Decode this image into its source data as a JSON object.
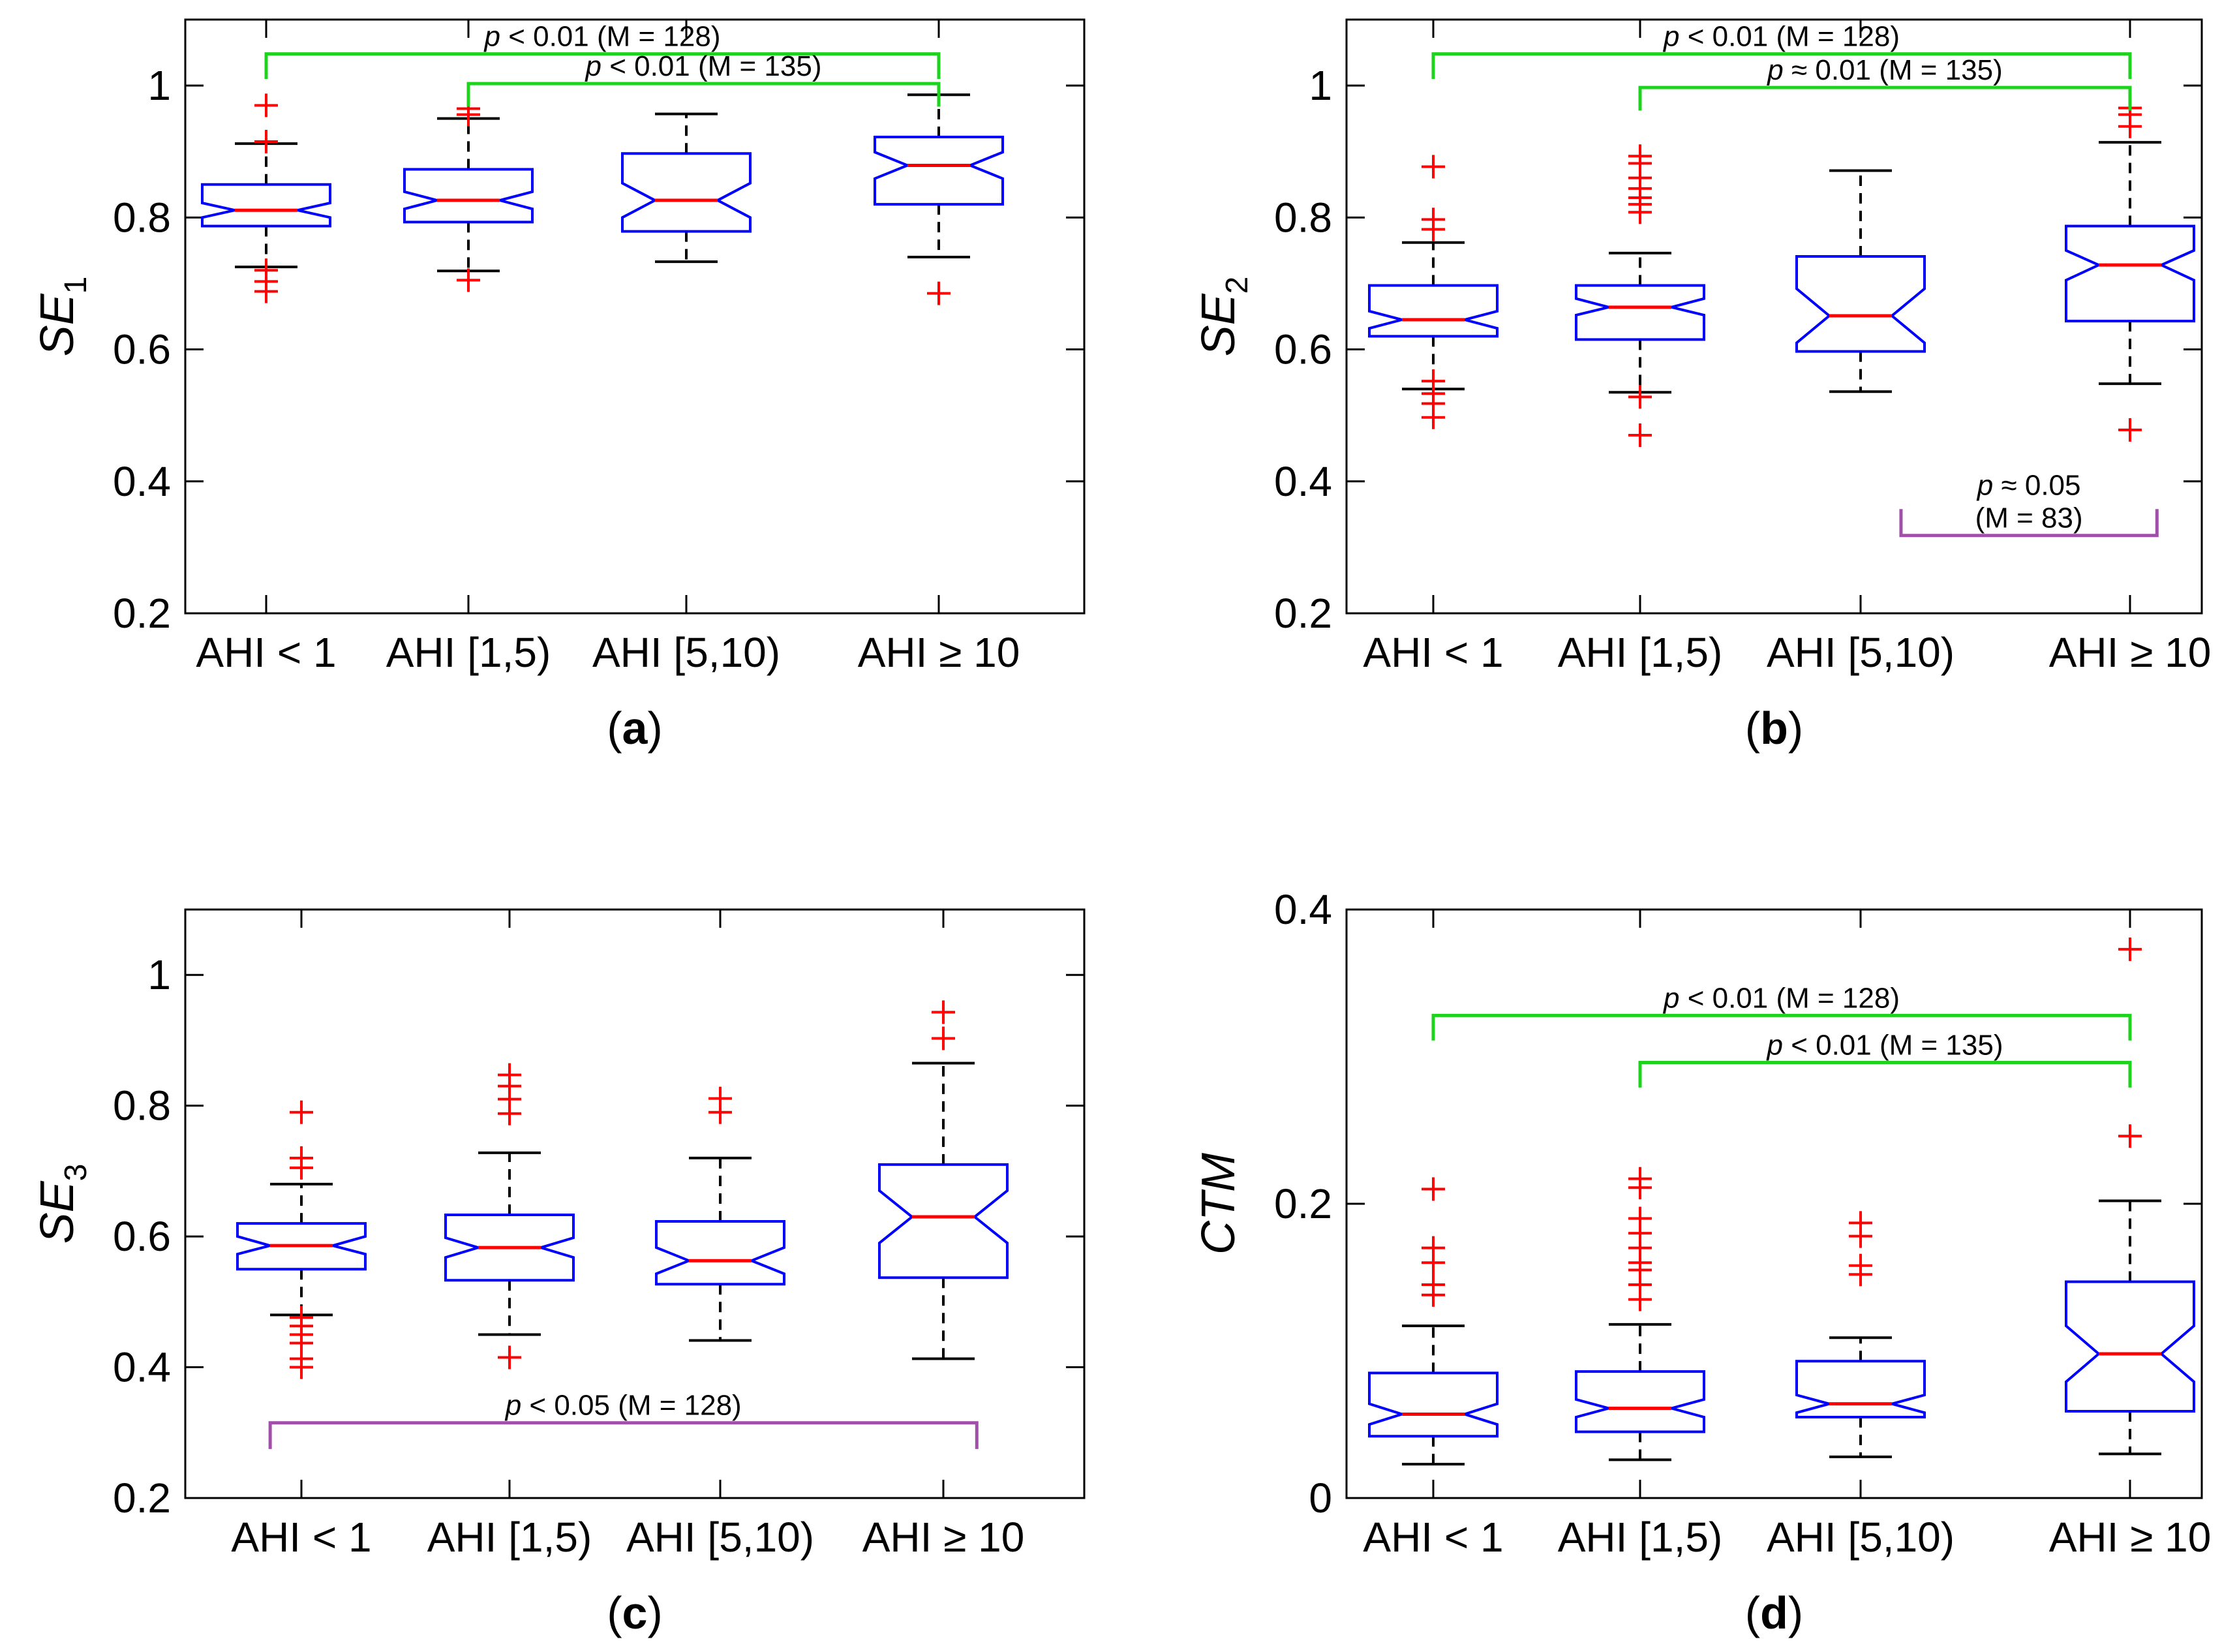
{
  "figure": {
    "colors": {
      "box": "#0000ff",
      "median": "#ff0000",
      "outlier": "#ff0000",
      "whisker": "#000000",
      "sig_bracket": "#1ed31e",
      "sig_bracket_alt": "#a050a8"
    }
  },
  "chart_data": [
    {
      "panel_label": "a",
      "type": "box",
      "ylabel": "SE",
      "ylabel_sub": "1",
      "ylim": [
        0.2,
        1.1
      ],
      "yticks": [
        0.2,
        0.4,
        0.6,
        0.8,
        1
      ],
      "ytick_labels": [
        "0.2",
        "0.4",
        "0.6",
        "0.8",
        "1"
      ],
      "categories": [
        "AHI < 1",
        "AHI [1,5)",
        "AHI [5,10)",
        "AHI ≥ 10"
      ],
      "boxes": [
        {
          "q1": 0.787,
          "median": 0.811,
          "q3": 0.85,
          "notch_lo": 0.8,
          "notch_hi": 0.822,
          "wlo": 0.725,
          "whi": 0.912,
          "outliers": [
            0.97,
            0.915,
            0.72,
            0.703,
            0.688
          ]
        },
        {
          "q1": 0.793,
          "median": 0.826,
          "q3": 0.873,
          "notch_lo": 0.813,
          "notch_hi": 0.839,
          "wlo": 0.719,
          "whi": 0.95,
          "outliers": [
            0.965,
            0.956,
            0.705
          ]
        },
        {
          "q1": 0.779,
          "median": 0.826,
          "q3": 0.897,
          "notch_lo": 0.8,
          "notch_hi": 0.852,
          "wlo": 0.733,
          "whi": 0.957,
          "outliers": []
        },
        {
          "q1": 0.82,
          "median": 0.879,
          "q3": 0.922,
          "notch_lo": 0.859,
          "notch_hi": 0.899,
          "wlo": 0.74,
          "whi": 0.986,
          "outliers": [
            0.685
          ]
        }
      ],
      "brackets": [
        {
          "from": 0,
          "to": 3,
          "y": 1.048,
          "leg_end": 1.01,
          "color": "green",
          "p_italic": "p",
          "text": " < 0.01 (M = 128)"
        },
        {
          "from": 1,
          "to": 3,
          "y": 1.003,
          "leg_end": 0.968,
          "color": "green",
          "p_italic": "p",
          "text": " < 0.01 (M = 135)"
        }
      ]
    },
    {
      "panel_label": "b",
      "type": "box",
      "ylabel": "SE",
      "ylabel_sub": "2",
      "ylim": [
        0.2,
        1.1
      ],
      "yticks": [
        0.2,
        0.4,
        0.6,
        0.8,
        1
      ],
      "ytick_labels": [
        "0.2",
        "0.4",
        "0.6",
        "0.8",
        "1"
      ],
      "categories": [
        "AHI < 1",
        "AHI [1,5)",
        "AHI [5,10)",
        "AHI ≥ 10"
      ],
      "boxes": [
        {
          "q1": 0.62,
          "median": 0.645,
          "q3": 0.697,
          "notch_lo": 0.632,
          "notch_hi": 0.658,
          "wlo": 0.54,
          "whi": 0.762,
          "outliers": [
            0.877,
            0.797,
            0.782,
            0.552,
            0.533,
            0.518,
            0.497
          ]
        },
        {
          "q1": 0.615,
          "median": 0.664,
          "q3": 0.697,
          "notch_lo": 0.652,
          "notch_hi": 0.677,
          "wlo": 0.535,
          "whi": 0.746,
          "outliers": [
            0.893,
            0.882,
            0.86,
            0.844,
            0.83,
            0.82,
            0.808,
            0.528,
            0.47
          ]
        },
        {
          "q1": 0.597,
          "median": 0.651,
          "q3": 0.741,
          "notch_lo": 0.61,
          "notch_hi": 0.692,
          "wlo": 0.536,
          "whi": 0.871,
          "outliers": []
        },
        {
          "q1": 0.643,
          "median": 0.728,
          "q3": 0.787,
          "notch_lo": 0.705,
          "notch_hi": 0.75,
          "wlo": 0.548,
          "whi": 0.914,
          "outliers": [
            0.966,
            0.956,
            0.938,
            0.478
          ]
        }
      ],
      "brackets": [
        {
          "from": 0,
          "to": 3,
          "y": 1.048,
          "leg_end": 1.01,
          "color": "green",
          "p_italic": "p",
          "text": " < 0.01 (M = 128)"
        },
        {
          "from": 1,
          "to": 3,
          "y": 0.997,
          "leg_end": 0.962,
          "color": "green",
          "p_italic": "p",
          "text": " ≈ 0.01 (M = 135)"
        },
        {
          "from": 2.15,
          "to": 3.1,
          "y": 0.318,
          "leg_end": 0.358,
          "color": "purple",
          "p_italic": "p",
          "text": " ≈ 0.05",
          "text2": "(M = 83)"
        }
      ]
    },
    {
      "panel_label": "c",
      "type": "box",
      "ylabel": "SE",
      "ylabel_sub": "3",
      "ylim": [
        0.2,
        1.1
      ],
      "yticks": [
        0.2,
        0.4,
        0.6,
        0.8,
        1
      ],
      "ytick_labels": [
        "0.2",
        "0.4",
        "0.6",
        "0.8",
        "1"
      ],
      "categories": [
        "AHI < 1",
        "AHI [1,5)",
        "AHI [5,10)",
        "AHI ≥ 10"
      ],
      "boxes": [
        {
          "q1": 0.55,
          "median": 0.586,
          "q3": 0.62,
          "notch_lo": 0.573,
          "notch_hi": 0.6,
          "wlo": 0.48,
          "whi": 0.68,
          "outliers": [
            0.79,
            0.72,
            0.705,
            0.476,
            0.463,
            0.45,
            0.437,
            0.413,
            0.4
          ]
        },
        {
          "q1": 0.533,
          "median": 0.583,
          "q3": 0.633,
          "notch_lo": 0.568,
          "notch_hi": 0.598,
          "wlo": 0.45,
          "whi": 0.728,
          "outliers": [
            0.847,
            0.83,
            0.81,
            0.788,
            0.415
          ]
        },
        {
          "q1": 0.527,
          "median": 0.563,
          "q3": 0.623,
          "notch_lo": 0.543,
          "notch_hi": 0.583,
          "wlo": 0.441,
          "whi": 0.72,
          "outliers": [
            0.811,
            0.79
          ]
        },
        {
          "q1": 0.537,
          "median": 0.63,
          "q3": 0.71,
          "notch_lo": 0.59,
          "notch_hi": 0.67,
          "wlo": 0.413,
          "whi": 0.865,
          "outliers": [
            0.943,
            0.903
          ]
        }
      ],
      "brackets": [
        {
          "from": -0.15,
          "to": 3.15,
          "y": 0.315,
          "leg_end": 0.275,
          "color": "purple",
          "p_italic": "p",
          "text": " < 0.05 (M = 128)"
        }
      ]
    },
    {
      "panel_label": "d",
      "type": "box",
      "ylabel": "CTM",
      "ylabel_sub": "",
      "ylim": [
        0,
        0.4
      ],
      "yticks": [
        0,
        0.2,
        0.4
      ],
      "ytick_labels": [
        "0",
        "0.2",
        "0.4"
      ],
      "categories": [
        "AHI < 1",
        "AHI [1,5)",
        "AHI [5,10)",
        "AHI ≥ 10"
      ],
      "boxes": [
        {
          "q1": 0.042,
          "median": 0.057,
          "q3": 0.085,
          "notch_lo": 0.05,
          "notch_hi": 0.064,
          "wlo": 0.023,
          "whi": 0.117,
          "outliers": [
            0.21,
            0.17,
            0.16,
            0.145,
            0.138
          ]
        },
        {
          "q1": 0.045,
          "median": 0.061,
          "q3": 0.086,
          "notch_lo": 0.055,
          "notch_hi": 0.067,
          "wlo": 0.026,
          "whi": 0.118,
          "outliers": [
            0.217,
            0.211,
            0.19,
            0.18,
            0.17,
            0.16,
            0.155,
            0.145,
            0.135
          ]
        },
        {
          "q1": 0.055,
          "median": 0.064,
          "q3": 0.093,
          "notch_lo": 0.058,
          "notch_hi": 0.07,
          "wlo": 0.028,
          "whi": 0.109,
          "outliers": [
            0.187,
            0.178,
            0.158,
            0.152
          ]
        },
        {
          "q1": 0.059,
          "median": 0.098,
          "q3": 0.147,
          "notch_lo": 0.079,
          "notch_hi": 0.117,
          "wlo": 0.03,
          "whi": 0.202,
          "outliers": [
            0.373,
            0.246
          ]
        }
      ],
      "brackets": [
        {
          "from": 0,
          "to": 3,
          "y": 0.328,
          "leg_end": 0.311,
          "color": "green",
          "p_italic": "p",
          "text": " < 0.01 (M = 128)"
        },
        {
          "from": 1,
          "to": 3,
          "y": 0.296,
          "leg_end": 0.279,
          "color": "green",
          "p_italic": "p",
          "text": " < 0.01 (M = 135)"
        }
      ]
    }
  ]
}
